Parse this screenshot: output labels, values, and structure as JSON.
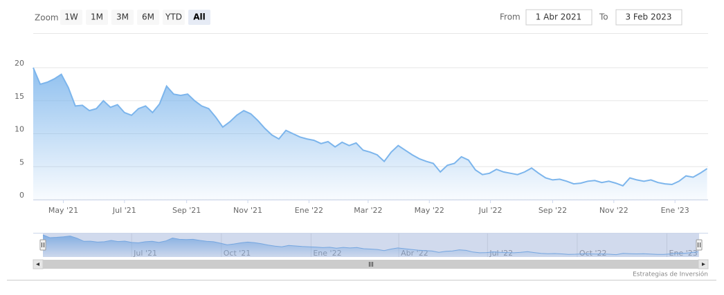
{
  "toolbar": {
    "zoom_label": "Zoom",
    "buttons": [
      "1W",
      "1M",
      "3M",
      "6M",
      "YTD",
      "All"
    ],
    "selected": 5,
    "from_label": "From",
    "from": "1 Abr 2021",
    "to_label": "To",
    "to": "3 Feb 2023"
  },
  "chart_data": {
    "type": "area",
    "x": [
      "2021-04-01",
      "2021-04-08",
      "2021-04-15",
      "2021-04-22",
      "2021-04-29",
      "2021-05-06",
      "2021-05-13",
      "2021-05-20",
      "2021-05-27",
      "2021-06-03",
      "2021-06-10",
      "2021-06-17",
      "2021-06-24",
      "2021-07-01",
      "2021-07-08",
      "2021-07-15",
      "2021-07-22",
      "2021-07-29",
      "2021-08-05",
      "2021-08-12",
      "2021-08-19",
      "2021-08-26",
      "2021-09-02",
      "2021-09-09",
      "2021-09-16",
      "2021-09-23",
      "2021-09-30",
      "2021-10-07",
      "2021-10-14",
      "2021-10-21",
      "2021-10-28",
      "2021-11-04",
      "2021-11-11",
      "2021-11-18",
      "2021-11-25",
      "2021-12-02",
      "2021-12-09",
      "2021-12-16",
      "2021-12-23",
      "2021-12-30",
      "2022-01-06",
      "2022-01-13",
      "2022-01-20",
      "2022-01-27",
      "2022-02-03",
      "2022-02-10",
      "2022-02-17",
      "2022-02-24",
      "2022-03-03",
      "2022-03-10",
      "2022-03-17",
      "2022-03-24",
      "2022-03-31",
      "2022-04-07",
      "2022-04-14",
      "2022-04-21",
      "2022-04-28",
      "2022-05-05",
      "2022-05-12",
      "2022-05-19",
      "2022-05-26",
      "2022-06-02",
      "2022-06-09",
      "2022-06-16",
      "2022-06-23",
      "2022-06-30",
      "2022-07-07",
      "2022-07-14",
      "2022-07-21",
      "2022-07-28",
      "2022-08-04",
      "2022-08-11",
      "2022-08-18",
      "2022-08-25",
      "2022-09-01",
      "2022-09-08",
      "2022-09-15",
      "2022-09-22",
      "2022-09-29",
      "2022-10-06",
      "2022-10-13",
      "2022-10-20",
      "2022-10-27",
      "2022-11-03",
      "2022-11-10",
      "2022-11-17",
      "2022-11-24",
      "2022-12-01",
      "2022-12-08",
      "2022-12-15",
      "2022-12-22",
      "2022-12-29",
      "2023-01-05",
      "2023-01-12",
      "2023-01-19",
      "2023-01-26",
      "2023-02-02"
    ],
    "series": [
      {
        "color": "#7cb5ec",
        "values": [
          20,
          17.5,
          17.8,
          18.3,
          19,
          17,
          14.2,
          14.3,
          13.5,
          13.8,
          15,
          14,
          14.4,
          13.2,
          12.8,
          13.8,
          14.2,
          13.2,
          14.5,
          17.2,
          16,
          15.8,
          16,
          15,
          14.2,
          13.8,
          12.5,
          11,
          11.8,
          12.8,
          13.5,
          13,
          12,
          10.8,
          9.8,
          9.2,
          10.5,
          10,
          9.5,
          9.2,
          9,
          8.5,
          8.8,
          8,
          8.7,
          8.2,
          8.6,
          7.5,
          7.2,
          6.8,
          5.8,
          7.2,
          8.2,
          7.5,
          6.8,
          6.2,
          5.8,
          5.5,
          4.2,
          5.2,
          5.5,
          6.5,
          6,
          4.5,
          3.8,
          4,
          4.6,
          4.2,
          4,
          3.8,
          4.2,
          4.8,
          4,
          3.3,
          3,
          3.1,
          2.8,
          2.4,
          2.5,
          2.8,
          2.9,
          2.6,
          2.8,
          2.5,
          2.1,
          3.3,
          3,
          2.8,
          3,
          2.6,
          2.4,
          2.3,
          2.8,
          3.6,
          3.4,
          4,
          4.7
        ]
      }
    ],
    "xlim": [
      "2021-04-01",
      "2023-02-03"
    ],
    "ylim": [
      0,
      20
    ],
    "yticks": [
      0,
      5,
      10,
      15,
      20
    ],
    "grid": true,
    "xticks": [
      {
        "value": "2021-05-01",
        "label": "May '21"
      },
      {
        "value": "2021-07-01",
        "label": "Jul '21"
      },
      {
        "value": "2021-09-01",
        "label": "Sep '21"
      },
      {
        "value": "2021-11-01",
        "label": "Nov '21"
      },
      {
        "value": "2022-01-01",
        "label": "Ene '22"
      },
      {
        "value": "2022-03-01",
        "label": "Mar '22"
      },
      {
        "value": "2022-05-01",
        "label": "May '22"
      },
      {
        "value": "2022-07-01",
        "label": "Jul '22"
      },
      {
        "value": "2022-09-01",
        "label": "Sep '22"
      },
      {
        "value": "2022-11-01",
        "label": "Nov '22"
      },
      {
        "value": "2023-01-01",
        "label": "Ene '23"
      }
    ],
    "navigator": {
      "xticks": [
        {
          "value": "2021-07-01",
          "label": "Jul '21"
        },
        {
          "value": "2021-10-01",
          "label": "Oct '21"
        },
        {
          "value": "2022-01-01",
          "label": "Ene '22"
        },
        {
          "value": "2022-04-01",
          "label": "Abr '22"
        },
        {
          "value": "2022-07-01",
          "label": "Jul '22"
        },
        {
          "value": "2022-10-01",
          "label": "Oct '22"
        },
        {
          "value": "2023-01-01",
          "label": "Ene '23"
        }
      ]
    }
  },
  "credit": "Estrategias de Inversión"
}
